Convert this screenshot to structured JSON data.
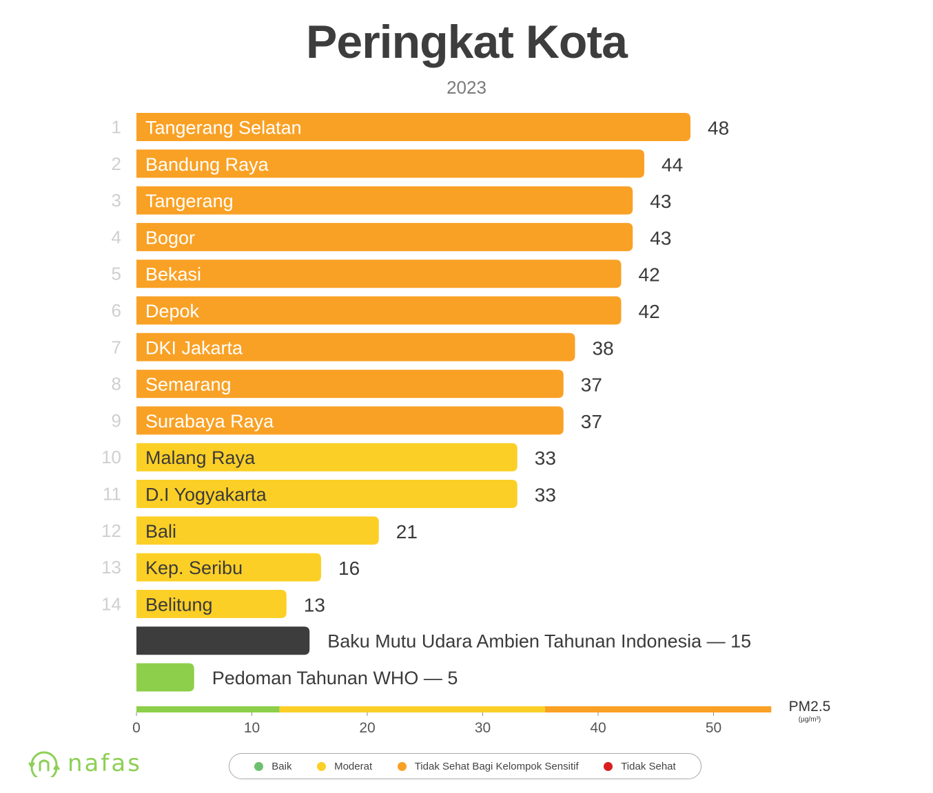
{
  "chart_data": {
    "type": "bar",
    "orientation": "horizontal",
    "title": "Peringkat Kota",
    "subtitle": "2023",
    "unit_label": "PM2.5",
    "unit_sub": "(µg/m³)",
    "xlim": [
      0,
      55
    ],
    "xticks": [
      0,
      10,
      20,
      30,
      40,
      50
    ],
    "rows": [
      {
        "rank": "1",
        "name": "Tangerang Selatan",
        "value": 48,
        "category": "sensitive"
      },
      {
        "rank": "2",
        "name": "Bandung Raya",
        "value": 44,
        "category": "sensitive"
      },
      {
        "rank": "3",
        "name": "Tangerang",
        "value": 43,
        "category": "sensitive"
      },
      {
        "rank": "4",
        "name": "Bogor",
        "value": 43,
        "category": "sensitive"
      },
      {
        "rank": "5",
        "name": "Bekasi",
        "value": 42,
        "category": "sensitive"
      },
      {
        "rank": "6",
        "name": "Depok",
        "value": 42,
        "category": "sensitive"
      },
      {
        "rank": "7",
        "name": "DKI Jakarta",
        "value": 38,
        "category": "sensitive"
      },
      {
        "rank": "8",
        "name": "Semarang",
        "value": 37,
        "category": "sensitive"
      },
      {
        "rank": "9",
        "name": "Surabaya Raya",
        "value": 37,
        "category": "sensitive"
      },
      {
        "rank": "10",
        "name": "Malang Raya",
        "value": 33,
        "category": "moderate"
      },
      {
        "rank": "11",
        "name": "D.I Yogyakarta",
        "value": 33,
        "category": "moderate"
      },
      {
        "rank": "12",
        "name": "Bali",
        "value": 21,
        "category": "moderate"
      },
      {
        "rank": "13",
        "name": "Kep. Seribu",
        "value": 16,
        "category": "moderate"
      },
      {
        "rank": "14",
        "name": "Belitung",
        "value": 13,
        "category": "moderate"
      }
    ],
    "reference_bars": [
      {
        "label": "Baku Mutu Udara Ambien Tahunan Indonesia — 15",
        "value": 15,
        "color": "#3d3d3d"
      },
      {
        "label": "Pedoman Tahunan WHO — 5",
        "value": 5,
        "color": "#8dcf4a"
      }
    ],
    "scale_bands": [
      {
        "from": 0,
        "to": 12.4,
        "color": "#8dcf4a"
      },
      {
        "from": 12.4,
        "to": 35.4,
        "color": "#fccf26"
      },
      {
        "from": 35.4,
        "to": 55,
        "color": "#f9a125"
      }
    ],
    "category_colors": {
      "sensitive": "#f9a125",
      "moderate": "#fccf26"
    },
    "label_colors": {
      "sensitive": "#ffffff",
      "moderate": "#3a3a3a"
    }
  },
  "brand": {
    "name": "nafas",
    "color": "#8dcf55"
  },
  "legend": [
    {
      "label": "Baik",
      "color": "#6cc070"
    },
    {
      "label": "Moderat",
      "color": "#fccf26"
    },
    {
      "label": "Tidak Sehat Bagi Kelompok Sensitif",
      "color": "#f9a125"
    },
    {
      "label": "Tidak Sehat",
      "color": "#d81f1f"
    }
  ]
}
